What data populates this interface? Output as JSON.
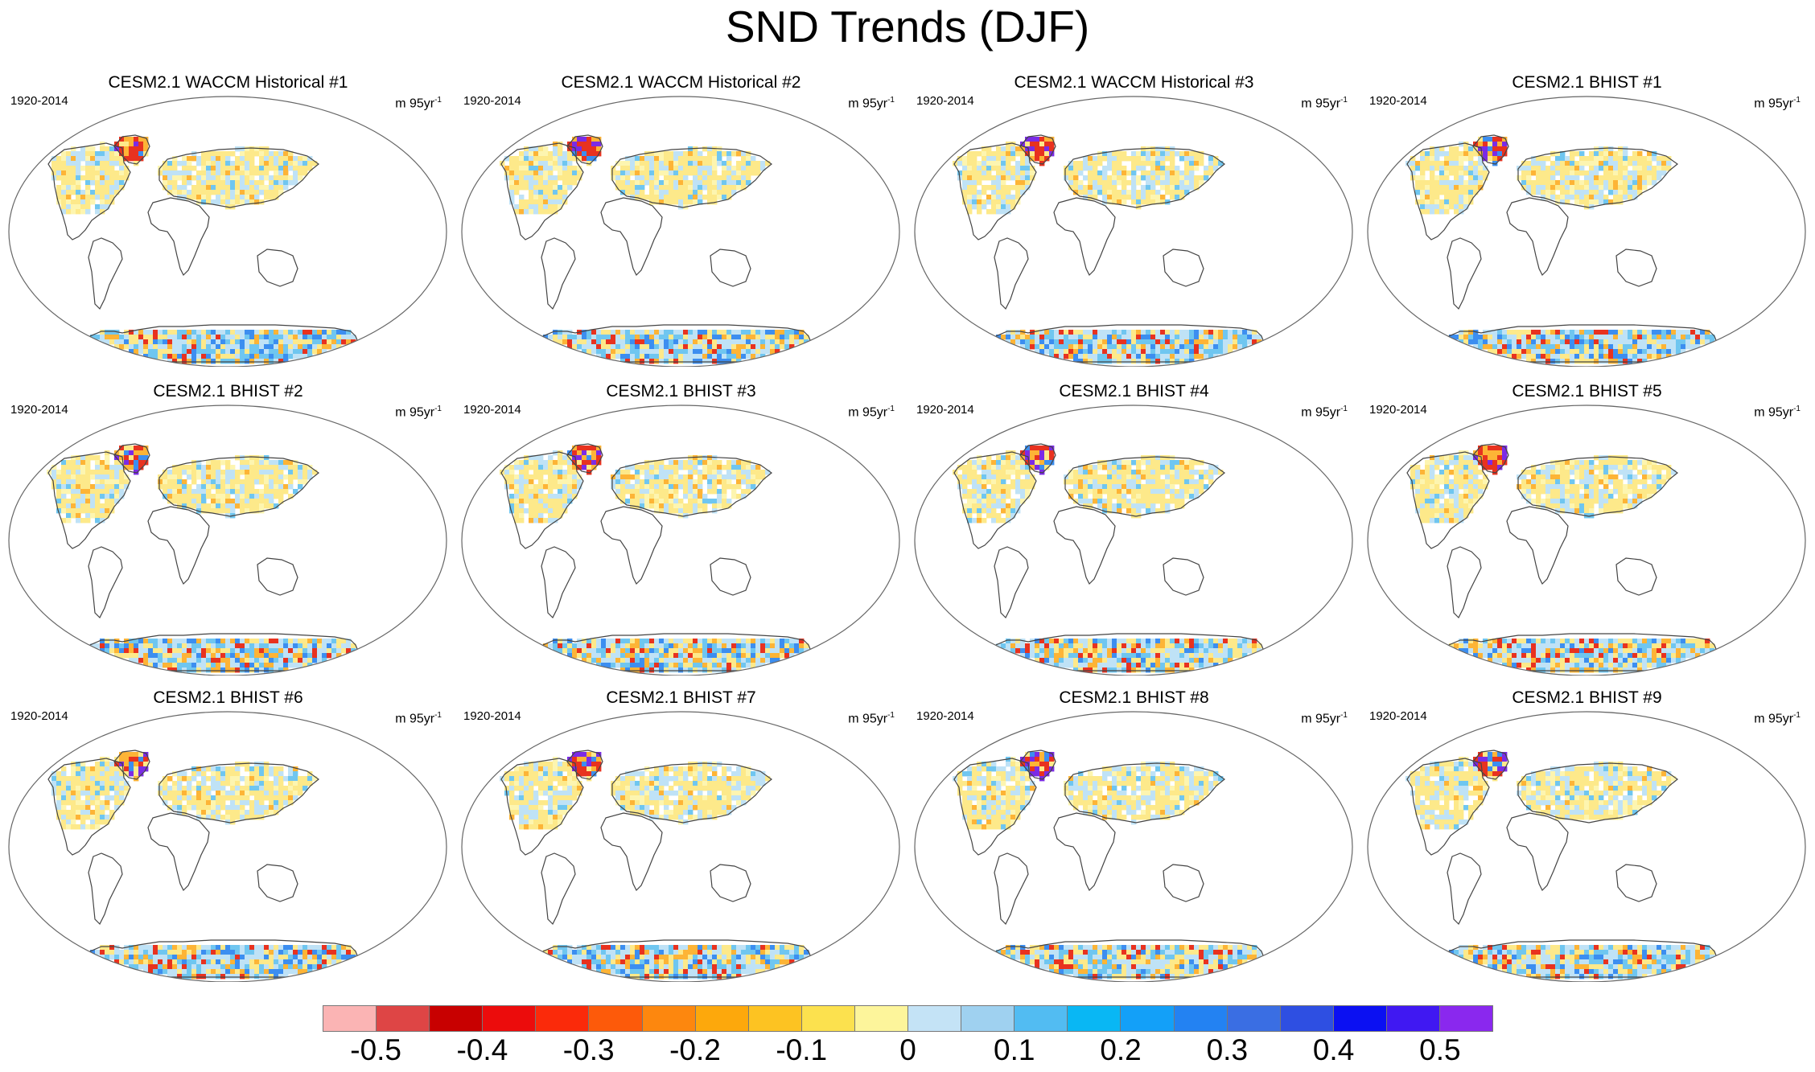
{
  "title": "SND Trends (DJF)",
  "panels": [
    {
      "title": "CESM2.1 WACCM Historical #1",
      "period": "1920-2014",
      "units": "m 95yr",
      "units_exp": "-1"
    },
    {
      "title": "CESM2.1 WACCM Historical #2",
      "period": "1920-2014",
      "units": "m 95yr",
      "units_exp": "-1"
    },
    {
      "title": "CESM2.1 WACCM Historical #3",
      "period": "1920-2014",
      "units": "m 95yr",
      "units_exp": "-1"
    },
    {
      "title": "CESM2.1 BHIST #1",
      "period": "1920-2014",
      "units": "m 95yr",
      "units_exp": "-1"
    },
    {
      "title": "CESM2.1 BHIST #2",
      "period": "1920-2014",
      "units": "m 95yr",
      "units_exp": "-1"
    },
    {
      "title": "CESM2.1 BHIST #3",
      "period": "1920-2014",
      "units": "m 95yr",
      "units_exp": "-1"
    },
    {
      "title": "CESM2.1 BHIST #4",
      "period": "1920-2014",
      "units": "m 95yr",
      "units_exp": "-1"
    },
    {
      "title": "CESM2.1 BHIST #5",
      "period": "1920-2014",
      "units": "m 95yr",
      "units_exp": "-1"
    },
    {
      "title": "CESM2.1 BHIST #6",
      "period": "1920-2014",
      "units": "m 95yr",
      "units_exp": "-1"
    },
    {
      "title": "CESM2.1 BHIST #7",
      "period": "1920-2014",
      "units": "m 95yr",
      "units_exp": "-1"
    },
    {
      "title": "CESM2.1 BHIST #8",
      "period": "1920-2014",
      "units": "m 95yr",
      "units_exp": "-1"
    },
    {
      "title": "CESM2.1 BHIST #9",
      "period": "1920-2014",
      "units": "m 95yr",
      "units_exp": "-1"
    }
  ],
  "colorbar": {
    "colors": [
      "#fbb4b4",
      "#de4545",
      "#c80000",
      "#ec0c0c",
      "#fb2a0a",
      "#fd5a0a",
      "#fd870e",
      "#fda80c",
      "#fdc322",
      "#fce14e",
      "#fdf59b",
      "#c4e3f6",
      "#9fd1f0",
      "#52bcf2",
      "#09b7f4",
      "#13a0f8",
      "#2382f2",
      "#3a6ee3",
      "#2e4fe2",
      "#0b10f2",
      "#4018f2",
      "#8a28ee"
    ],
    "labels": [
      "-0.5",
      "-0.4",
      "-0.3",
      "-0.2",
      "-0.1",
      "0",
      "0.1",
      "0.2",
      "0.3",
      "0.4",
      "0.5"
    ],
    "label_values": [
      -0.5,
      -0.4,
      -0.3,
      -0.2,
      -0.1,
      0,
      0.1,
      0.2,
      0.3,
      0.4,
      0.5
    ],
    "bounds": [
      -0.55,
      0.55
    ]
  },
  "palette": {
    "yellow": "#fde98a",
    "light_yellow": "#fdf5b0",
    "light_blue": "#bfe2f6",
    "blue": "#6fc6f0",
    "deep_blue": "#3c8ef0",
    "orange": "#fdb436",
    "red": "#e8321f",
    "purple": "#7b2be6",
    "coast": "#444444",
    "map_outline": "#666666"
  }
}
